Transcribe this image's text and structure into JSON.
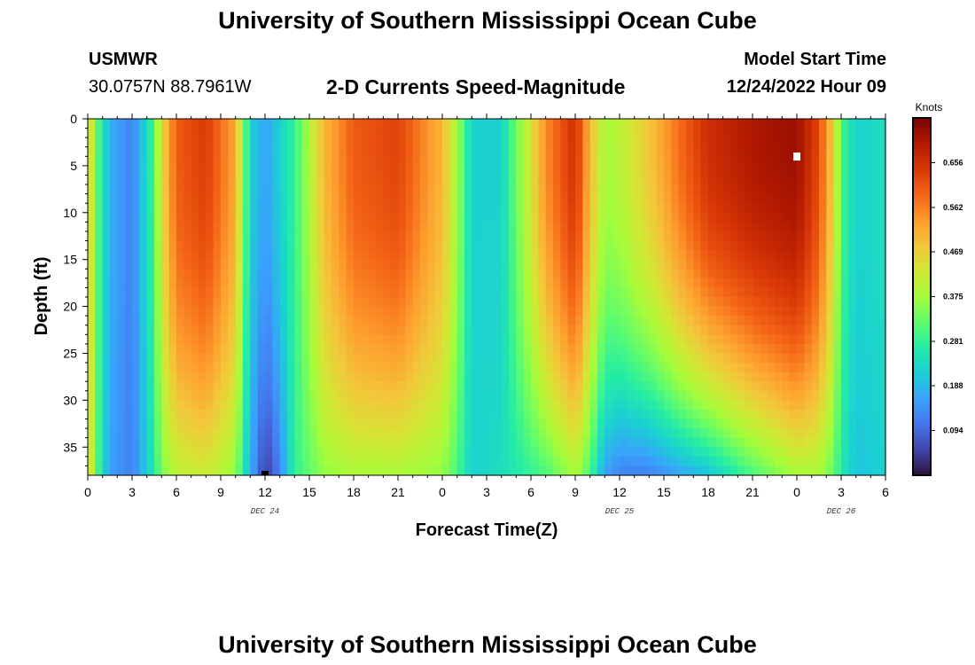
{
  "header": {
    "title": "University of Southern Mississippi Ocean Cube",
    "station": "USMWR",
    "coords": "30.0757N  88.7961W",
    "plot_title": "2-D Currents Speed-Magnitude",
    "model_label": "Model Start Time",
    "model_time": "12/24/2022 Hour 09",
    "footer_title": "University of Southern Mississippi Ocean Cube"
  },
  "colors": {
    "palette": [
      "#30123b",
      "#4145ab",
      "#4675ed",
      "#39a2fc",
      "#1bcfd4",
      "#24eca6",
      "#61fc6c",
      "#a4fc3b",
      "#d1e834",
      "#f3c63a",
      "#fe9b2d",
      "#f36315",
      "#d93806",
      "#b11901",
      "#7a0403"
    ]
  },
  "chart_data": {
    "type": "heatmap",
    "title": "2-D Currents Speed-Magnitude",
    "xlabel": "Forecast Time(Z)",
    "ylabel": "Depth (ft)",
    "x_ticks": [
      "0",
      "3",
      "6",
      "9",
      "12",
      "15",
      "18",
      "21",
      "0",
      "3",
      "6",
      "9",
      "12",
      "15",
      "18",
      "21",
      "0",
      "3",
      "6"
    ],
    "x_range_hours": [
      0,
      54
    ],
    "y_ticks": [
      "0",
      "5",
      "10",
      "15",
      "20",
      "25",
      "30",
      "35"
    ],
    "y_range_ft": [
      0,
      38
    ],
    "day_labels": [
      {
        "label": "DEC 24",
        "hour": 12
      },
      {
        "label": "DEC 25",
        "hour": 36
      },
      {
        "label": "DEC 26",
        "hour": 51
      }
    ],
    "colorbar": {
      "label": "Knots",
      "range": [
        0,
        0.75
      ],
      "ticks": [
        "0.094",
        "0.188",
        "0.281",
        "0.375",
        "0.469",
        "0.562",
        "0.656"
      ],
      "tick_values": [
        0.094,
        0.188,
        0.281,
        0.375,
        0.469,
        0.562,
        0.656
      ]
    },
    "surface_speed_by_hour": [
      {
        "hour": 0,
        "speed": 0.5
      },
      {
        "hour": 0.5,
        "speed": 0.34
      },
      {
        "hour": 1,
        "speed": 0.26
      },
      {
        "hour": 1.5,
        "speed": 0.18
      },
      {
        "hour": 3,
        "speed": 0.12
      },
      {
        "hour": 4.5,
        "speed": 0.3
      },
      {
        "hour": 5,
        "speed": 0.45
      },
      {
        "hour": 6,
        "speed": 0.6
      },
      {
        "hour": 8,
        "speed": 0.64
      },
      {
        "hour": 10,
        "speed": 0.52
      },
      {
        "hour": 11,
        "speed": 0.22
      },
      {
        "hour": 12,
        "speed": 0.16
      },
      {
        "hour": 14,
        "speed": 0.28
      },
      {
        "hour": 16,
        "speed": 0.5
      },
      {
        "hour": 18,
        "speed": 0.6
      },
      {
        "hour": 21,
        "speed": 0.63
      },
      {
        "hour": 24,
        "speed": 0.5
      },
      {
        "hour": 25,
        "speed": 0.38
      },
      {
        "hour": 26,
        "speed": 0.22
      },
      {
        "hour": 28,
        "speed": 0.22
      },
      {
        "hour": 31,
        "speed": 0.55
      },
      {
        "hour": 33,
        "speed": 0.66
      },
      {
        "hour": 34,
        "speed": 0.5
      },
      {
        "hour": 35,
        "speed": 0.38
      },
      {
        "hour": 36,
        "speed": 0.4
      },
      {
        "hour": 38,
        "speed": 0.48
      },
      {
        "hour": 40,
        "speed": 0.58
      },
      {
        "hour": 42,
        "speed": 0.66
      },
      {
        "hour": 45,
        "speed": 0.7
      },
      {
        "hour": 48,
        "speed": 0.72
      },
      {
        "hour": 49.5,
        "speed": 0.62
      },
      {
        "hour": 50.5,
        "speed": 0.46
      },
      {
        "hour": 51,
        "speed": 0.3
      },
      {
        "hour": 52,
        "speed": 0.22
      },
      {
        "hour": 54,
        "speed": 0.24
      }
    ],
    "bottom_speed_by_hour": [
      {
        "hour": 0,
        "speed": 0.5
      },
      {
        "hour": 0.5,
        "speed": 0.34
      },
      {
        "hour": 1,
        "speed": 0.24
      },
      {
        "hour": 1.5,
        "speed": 0.16
      },
      {
        "hour": 3,
        "speed": 0.12
      },
      {
        "hour": 4.5,
        "speed": 0.26
      },
      {
        "hour": 5,
        "speed": 0.34
      },
      {
        "hour": 6,
        "speed": 0.4
      },
      {
        "hour": 8,
        "speed": 0.42
      },
      {
        "hour": 10,
        "speed": 0.36
      },
      {
        "hour": 11,
        "speed": 0.18
      },
      {
        "hour": 12,
        "speed": 0.04
      },
      {
        "hour": 13,
        "speed": 0.12
      },
      {
        "hour": 14,
        "speed": 0.28
      },
      {
        "hour": 16,
        "speed": 0.36
      },
      {
        "hour": 18,
        "speed": 0.38
      },
      {
        "hour": 21,
        "speed": 0.38
      },
      {
        "hour": 24,
        "speed": 0.36
      },
      {
        "hour": 25,
        "speed": 0.3
      },
      {
        "hour": 26,
        "speed": 0.22
      },
      {
        "hour": 28,
        "speed": 0.24
      },
      {
        "hour": 31,
        "speed": 0.3
      },
      {
        "hour": 33,
        "speed": 0.38
      },
      {
        "hour": 34,
        "speed": 0.3
      },
      {
        "hour": 35,
        "speed": 0.16
      },
      {
        "hour": 36,
        "speed": 0.12
      },
      {
        "hour": 38,
        "speed": 0.12
      },
      {
        "hour": 40,
        "speed": 0.16
      },
      {
        "hour": 42,
        "speed": 0.2
      },
      {
        "hour": 45,
        "speed": 0.3
      },
      {
        "hour": 48,
        "speed": 0.38
      },
      {
        "hour": 49.5,
        "speed": 0.38
      },
      {
        "hour": 50.5,
        "speed": 0.32
      },
      {
        "hour": 51,
        "speed": 0.26
      },
      {
        "hour": 52,
        "speed": 0.2
      },
      {
        "hour": 54,
        "speed": 0.22
      }
    ]
  }
}
